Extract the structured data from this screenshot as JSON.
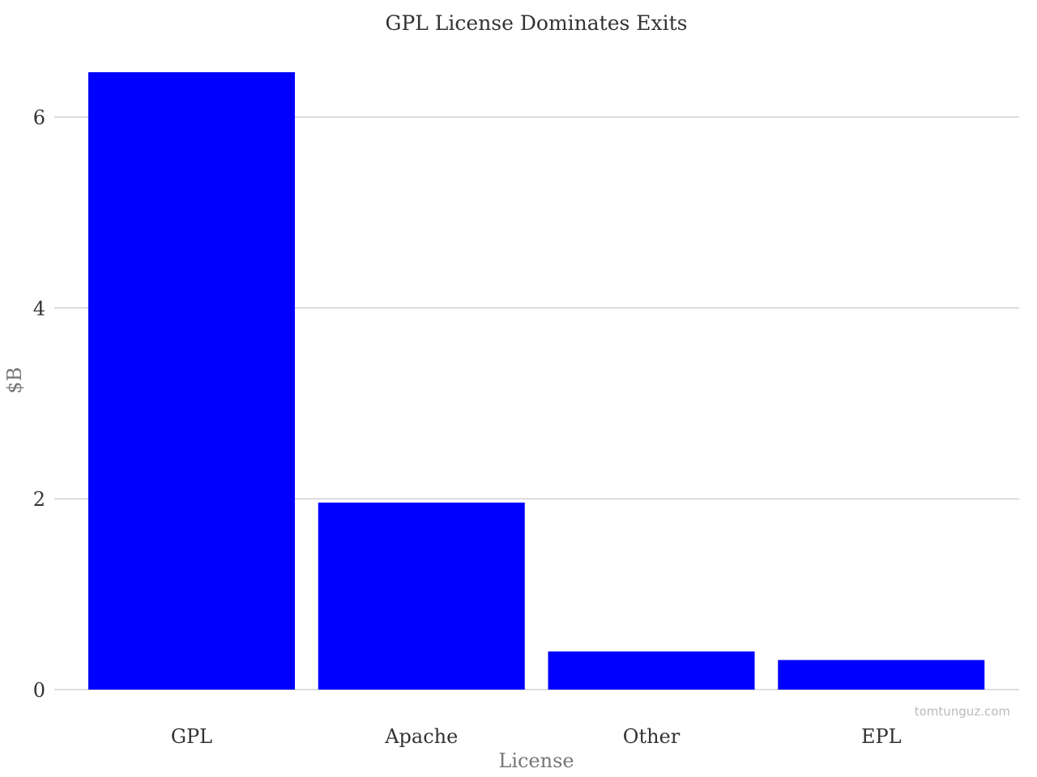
{
  "chart_data": {
    "type": "bar",
    "title": "GPL License Dominates Exits",
    "xlabel": "License",
    "ylabel": "$B",
    "categories": [
      "GPL",
      "Apache",
      "Other",
      "EPL"
    ],
    "values": [
      6.47,
      1.96,
      0.4,
      0.31
    ],
    "ylim": [
      0,
      6.5
    ],
    "yticks": [
      0,
      2,
      4,
      6
    ],
    "grid": true,
    "colors": {
      "bar": "#0000ff",
      "grid": "#bdbdbd"
    }
  },
  "watermark": "tomtunguz.com"
}
